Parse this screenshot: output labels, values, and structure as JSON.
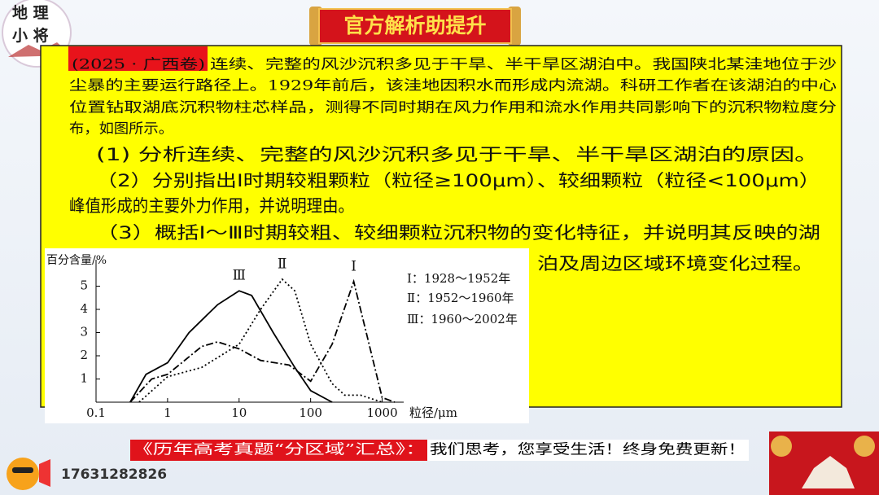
{
  "header": {
    "logo": [
      "地 理",
      "小 将"
    ],
    "banner_title": "官方解析助提升"
  },
  "question": {
    "source": "(2025 · 广西卷)",
    "intro_lines": [
      "连续、完整的风沙沉积多见于干旱、半干旱区湖泊中。我国陕北某洼地位于沙",
      "尘暴的主要运行路径上。1929年前后，该洼地因积水而形成内流湖。科研工作者在该湖泊的中心",
      "位置钻取湖底沉积物柱芯样品，测得不同时期在风力作用和流水作用共同影响下的沉积物粒度分",
      "布，如图所示。"
    ],
    "sub_lines": [
      "(1) 分析连续、完整的风沙沉积多见于干旱、半干旱区湖泊的原因。",
      "（2）分别指出Ⅰ时期较粗颗粒（粒径≥100μm）、较细颗粒（粒径<100μm）",
      "峰值形成的主要外力作用，并说明理由。",
      "（3）概括Ⅰ～Ⅲ时期较粗、较细颗粒沉积物的变化特征，并说明其反映的湖",
      "泊及周边区域环境变化过程。"
    ]
  },
  "chart": {
    "type": "line",
    "y_label": "百分含量/%",
    "x_label": "粒径/μm",
    "xlog": true,
    "xlim": [
      0.1,
      2000
    ],
    "ylim": [
      0,
      6
    ],
    "xticks": [
      0.1,
      1,
      10,
      100,
      1000
    ],
    "yticks": [
      1,
      2,
      3,
      4,
      5
    ],
    "series": [
      {
        "name": "Ⅰ：1928～1952年",
        "label": "Ⅰ",
        "color": "#000000",
        "dash": "dashdot",
        "x": [
          0.3,
          0.6,
          1,
          3,
          5,
          10,
          20,
          50,
          100,
          200,
          400,
          600,
          1000,
          1500
        ],
        "values": [
          0,
          1,
          1.2,
          2.4,
          2.6,
          2.3,
          1.8,
          1.6,
          0.9,
          2.5,
          5.2,
          3,
          0.2,
          0
        ]
      },
      {
        "name": "Ⅱ：1952～1960年",
        "label": "Ⅱ",
        "color": "#000000",
        "dash": "dotted",
        "x": [
          0.4,
          1,
          3,
          10,
          20,
          40,
          60,
          100,
          200,
          300,
          500,
          1000
        ],
        "values": [
          0,
          1.1,
          1.5,
          2.5,
          4,
          5.3,
          4.8,
          2.5,
          0.8,
          0.3,
          0.3,
          0
        ]
      },
      {
        "name": "Ⅲ：1960～2002年",
        "label": "Ⅲ",
        "color": "#000000",
        "dash": "solid",
        "x": [
          0.3,
          0.5,
          1,
          2,
          5,
          10,
          15,
          30,
          60,
          100,
          200
        ],
        "values": [
          0,
          1.2,
          1.7,
          3,
          4.2,
          4.8,
          4.6,
          3,
          1.5,
          0.5,
          0
        ]
      }
    ]
  },
  "footer": {
    "series_name": "《历年高考真题“分区域”汇总》：",
    "slogan": "我们思考，您享受生活！终身免费更新！",
    "phone": "17631282826"
  }
}
